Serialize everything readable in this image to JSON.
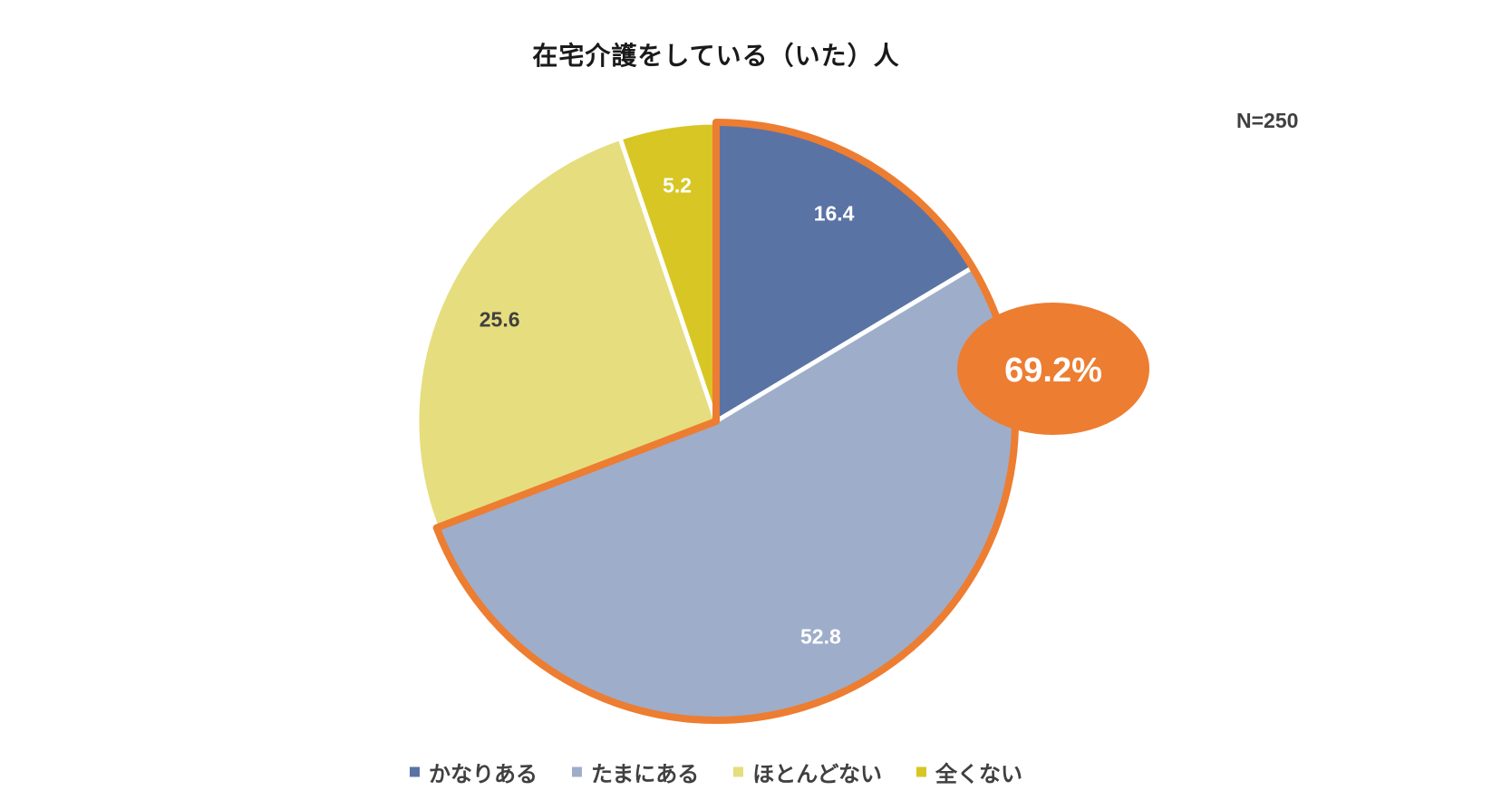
{
  "sample_size": "N=250",
  "highlight": {
    "label": "69.2%",
    "color": "#ED7D31",
    "covers": [
      "かなりある",
      "たまにある"
    ]
  },
  "chart_data": {
    "type": "pie",
    "title": "在宅介護をしている（いた）人",
    "start": "12 o'clock, clockwise",
    "categories": [
      "かなりある",
      "たまにある",
      "ほとんどない",
      "全くない"
    ],
    "values": [
      16.4,
      52.8,
      25.6,
      5.2
    ],
    "colors": [
      "#5A73A5",
      "#9EADCA",
      "#E6DD7E",
      "#D8C624"
    ],
    "label_colors": [
      "#ffffff",
      "#ffffff",
      "#404040",
      "#ffffff"
    ],
    "legend_position": "bottom"
  }
}
